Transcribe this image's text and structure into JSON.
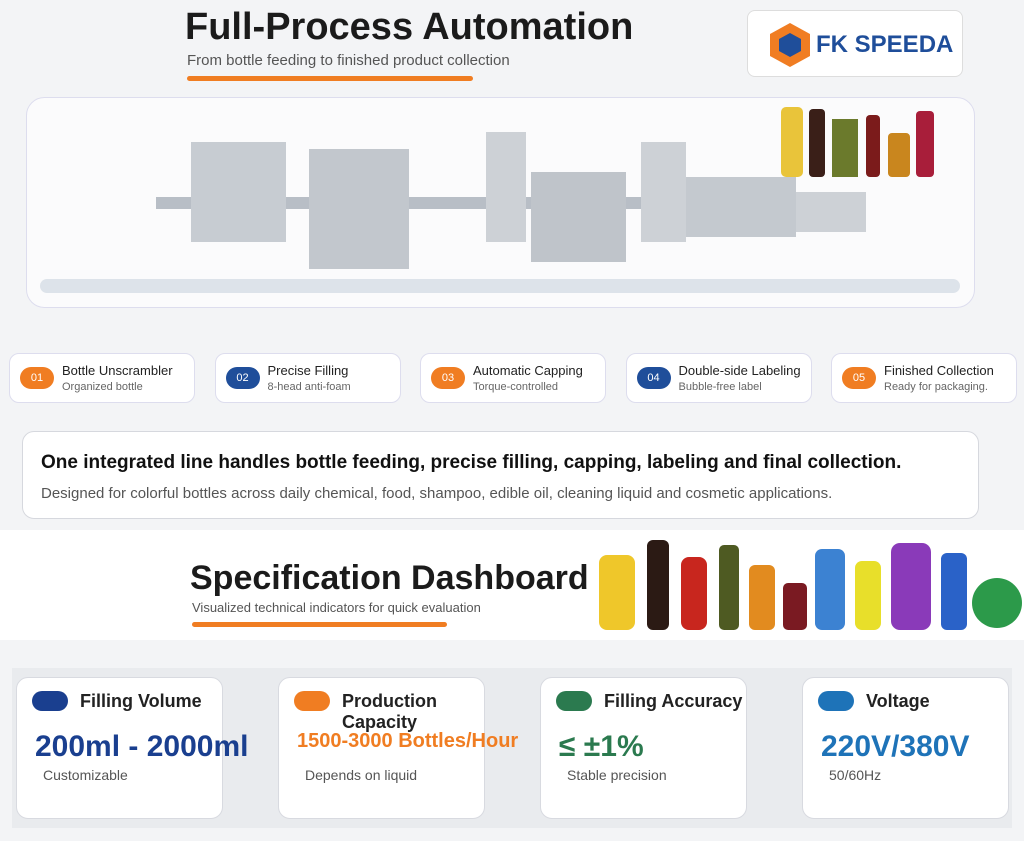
{
  "header": {
    "title": "Full-Process Automation",
    "subtitle": "From bottle feeding to finished product collection",
    "logo": "FK SPEEDA"
  },
  "steps": [
    {
      "number": "01",
      "title": "Bottle Unscrambler",
      "subtitle": "Organized bottle"
    },
    {
      "number": "02",
      "title": "Precise Filling",
      "subtitle": "8-head anti-foam"
    },
    {
      "number": "03",
      "title": "Automatic Capping",
      "subtitle": "Torque-controlled"
    },
    {
      "number": "04",
      "title": "Double-side Labeling",
      "subtitle": "Bubble-free label"
    },
    {
      "number": "05",
      "title": "Finished Collection",
      "subtitle": "Ready for packaging."
    }
  ],
  "summary": {
    "headline": "One integrated line handles bottle feeding, precise filling, capping, labeling and final collection.",
    "description": "Designed for colorful bottles across daily chemical, food, shampoo, edible oil, cleaning liquid and cosmetic applications."
  },
  "specs": {
    "title": "Specification Dashboard",
    "subtitle": "Visualized technical indicators for quick evaluation",
    "cards": [
      {
        "label": "Filling Volume",
        "value": "200ml - 2000ml",
        "note": "Customizable"
      },
      {
        "label": "Production Capacity",
        "value": "1500-3000 Bottles/Hour",
        "note": "Depends on liquid"
      },
      {
        "label": "Filling Accuracy",
        "value": "≤ ±1%",
        "note": "Stable precision"
      },
      {
        "label": "Voltage",
        "value": "220V/380V",
        "note": "50/60Hz"
      }
    ]
  }
}
